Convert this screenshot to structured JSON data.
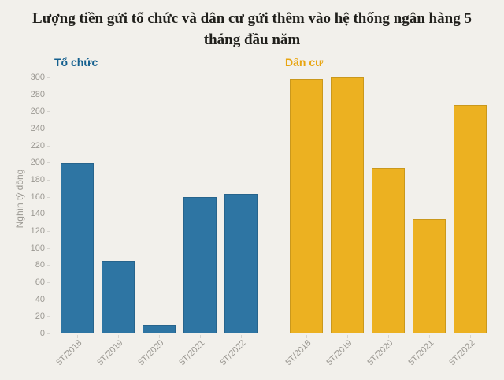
{
  "page": {
    "title": "Lượng tiền gửi tổ chức và dân cư gửi thêm vào hệ thống ngân hàng 5 tháng đầu năm"
  },
  "colors": {
    "background": "#f2f0eb",
    "title_text": "#21201c",
    "axis_text": "#9b9892",
    "tick_mark": "#d6d4cf",
    "organizations_bar": "#2e75a3",
    "organizations_label": "#15608f",
    "residents_bar": "#ecb121",
    "residents_label": "#e8a511"
  },
  "chart_data": [
    {
      "type": "bar",
      "title": "Tổ chức",
      "categories": [
        "5T/2018",
        "5T/2019",
        "5T/2020",
        "5T/2021",
        "5T/2022"
      ],
      "values": [
        199,
        85,
        10,
        160,
        163
      ],
      "ylabel": "Nghìn tỷ đồng",
      "ylim": [
        0,
        300
      ],
      "ytick_step": 20,
      "grid": "off",
      "legend": "none",
      "bar_color": "#2e75a3",
      "label_color": "#15608f",
      "y_axis_labels": true
    },
    {
      "type": "bar",
      "title": "Dân cư",
      "categories": [
        "5T/2018",
        "5T/2019",
        "5T/2020",
        "5T/2021",
        "5T/2022"
      ],
      "values": [
        298,
        300,
        194,
        134,
        268
      ],
      "ylabel": "Nghìn tỷ đồng",
      "ylim": [
        0,
        300
      ],
      "ytick_step": 20,
      "grid": "off",
      "legend": "none",
      "bar_color": "#ecb121",
      "label_color": "#e8a511",
      "y_axis_labels": false
    }
  ]
}
